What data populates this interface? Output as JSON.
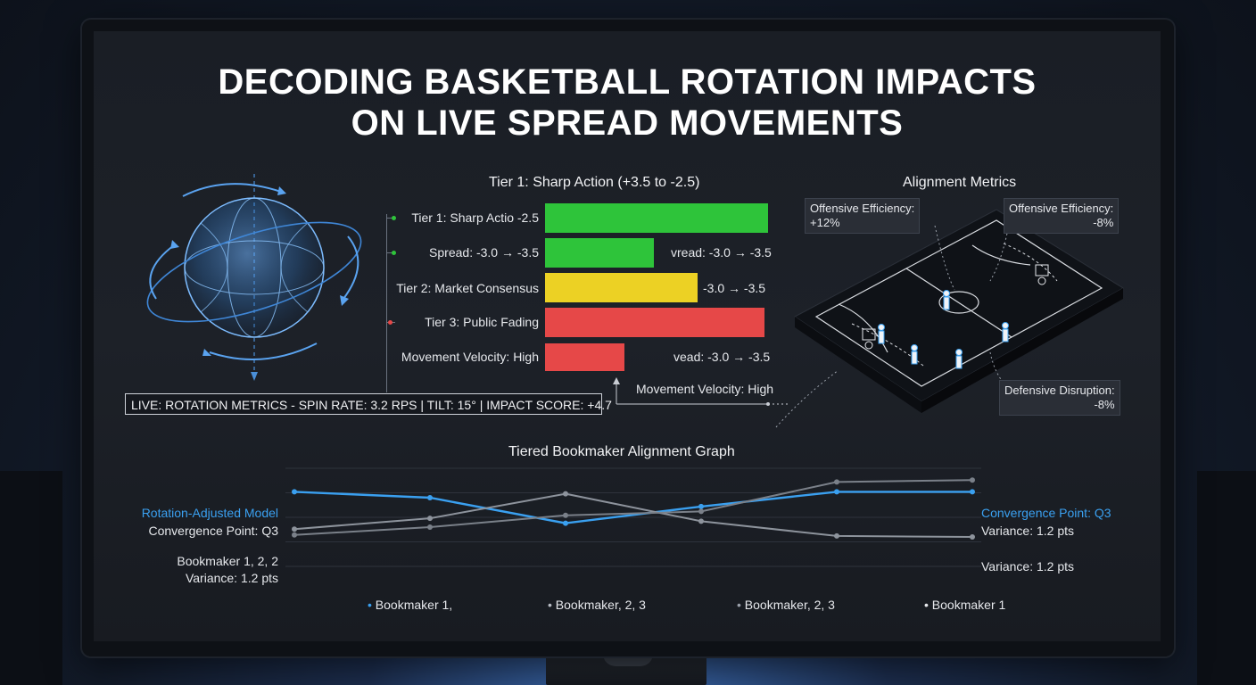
{
  "title": {
    "line1": "DECODING BASKETBALL ROTATION IMPACTS",
    "line2": "ON LIVE SPREAD MOVEMENTS"
  },
  "tiers_panel": {
    "heading": "Tier 1: Sharp Action (+3.5 to -2.5)",
    "rows": [
      {
        "label": "Tier 1: Sharp Actio -2.5",
        "fill": 0.98,
        "color": "#2ec43a",
        "right_label": "",
        "marker": "#2ec43a"
      },
      {
        "label": "Spread: -3.0 → -3.5",
        "fill": 0.49,
        "color": "#2ec43a",
        "right_label": "vread: -3.0 → -3.5",
        "marker": "#2ec43a"
      },
      {
        "label": "Tier 2: Market Consensus",
        "fill": 0.68,
        "color": "#ecd124",
        "right_label": "-3.0 → -3.5",
        "marker": ""
      },
      {
        "label": "Tier 3: Public Fading",
        "fill": 0.97,
        "color": "#e64848",
        "right_label": "",
        "marker": "#e64848"
      },
      {
        "label": "Movement Velocity: High",
        "fill": 0.35,
        "color": "#e64848",
        "right_label": "vead: -3.0 → -3.5",
        "marker": ""
      }
    ],
    "velocity_note": "Movement Velocity: High"
  },
  "live_ticker": "LIVE: ROTATION METRICS - SPIN RATE: 3.2 RPS  |  TILT: 15°  |  IMPACT SCORE: +4.7",
  "alignment": {
    "heading": "Alignment Metrics",
    "tip_left": {
      "line1": "Offensive Efficiency:",
      "line2": "+12%"
    },
    "tip_right": {
      "line1": "Offensive Efficiency:",
      "line2": "-8%"
    },
    "tip_bottom": {
      "line1": "Defensive Disruption:",
      "line2": "-8%"
    }
  },
  "graph": {
    "heading": "Tiered Bookmaker Alignment Graph",
    "left_labels": {
      "model": "Rotation-Adjusted Model",
      "convergence": "Convergence Point: Q3",
      "bookmakers": "Bookmaker 1, 2, 2",
      "variance": "Variance: 1.2 pts"
    },
    "right_labels": {
      "convergence": "Convergence Point: Q3",
      "variance_1": "Variance: 1.2 pts",
      "variance_2": "Variance: 1.2 pts"
    },
    "legend": [
      {
        "label": "Bookmaker 1,",
        "color": "#3aa0f0"
      },
      {
        "label": "Bookmaker, 2, 3",
        "color": "#b8bcc4"
      },
      {
        "label": "Bookmaker, 2, 3",
        "color": "#9aa0aa"
      },
      {
        "label": "Bookmaker 1",
        "color": "#e6e8ec"
      }
    ],
    "colors": {
      "model": "#3aa0f0",
      "book_a": "#8d939c",
      "book_b": "#7a8089"
    }
  },
  "chart_data": {
    "type": "line",
    "title": "Tiered Bookmaker Alignment Graph",
    "x": [
      1,
      2,
      3,
      4,
      5,
      6
    ],
    "ylim": [
      0,
      10
    ],
    "series": [
      {
        "name": "Rotation-Adjusted Model",
        "values": [
          7.6,
          7.0,
          4.4,
          6.1,
          7.6,
          7.6
        ]
      },
      {
        "values": [
          3.8,
          4.9,
          7.4,
          4.6,
          3.1,
          3.0
        ]
      },
      {
        "values": [
          3.2,
          4.0,
          5.2,
          5.6,
          8.6,
          8.8
        ]
      }
    ]
  }
}
